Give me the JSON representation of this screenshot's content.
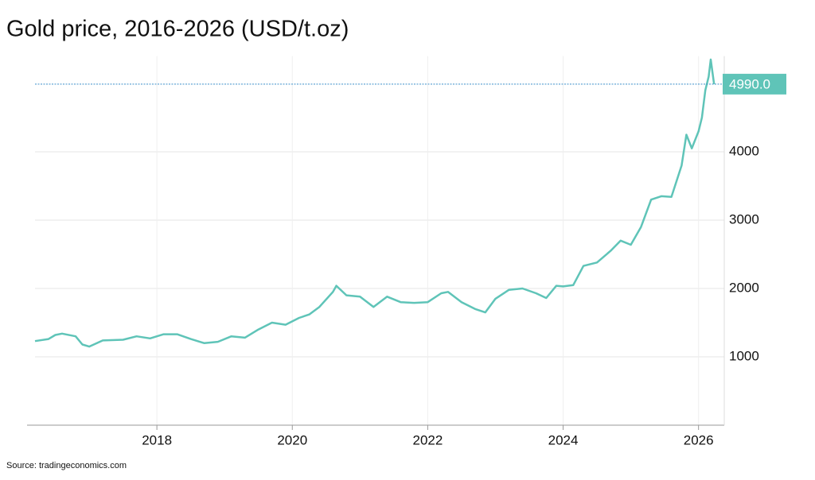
{
  "chart_data": {
    "type": "line",
    "title": "Gold price, 2016-2026  (USD/t.oz)",
    "source": "Source: tradingeconomics.com",
    "x": [
      2016.2,
      2016.4,
      2016.5,
      2016.6,
      2016.8,
      2016.9,
      2017.0,
      2017.2,
      2017.5,
      2017.7,
      2017.9,
      2018.1,
      2018.3,
      2018.5,
      2018.7,
      2018.9,
      2019.1,
      2019.3,
      2019.5,
      2019.7,
      2019.9,
      2020.1,
      2020.25,
      2020.4,
      2020.6,
      2020.65,
      2020.8,
      2021.0,
      2021.2,
      2021.4,
      2021.6,
      2021.8,
      2022.0,
      2022.2,
      2022.3,
      2022.5,
      2022.7,
      2022.85,
      2023.0,
      2023.2,
      2023.4,
      2023.6,
      2023.75,
      2023.9,
      2024.0,
      2024.15,
      2024.3,
      2024.5,
      2024.7,
      2024.85,
      2025.0,
      2025.15,
      2025.3,
      2025.45,
      2025.6,
      2025.75,
      2025.82,
      2025.9,
      2026.0,
      2026.05,
      2026.1,
      2026.15,
      2026.18,
      2026.23
    ],
    "series": [
      {
        "name": "Gold",
        "color": "#5fc4b8",
        "values": [
          1230,
          1260,
          1320,
          1340,
          1300,
          1180,
          1150,
          1240,
          1250,
          1300,
          1270,
          1330,
          1330,
          1260,
          1200,
          1220,
          1300,
          1280,
          1400,
          1500,
          1470,
          1570,
          1620,
          1730,
          1950,
          2040,
          1900,
          1880,
          1730,
          1880,
          1800,
          1790,
          1800,
          1930,
          1950,
          1800,
          1700,
          1650,
          1850,
          1980,
          2000,
          1930,
          1860,
          2040,
          2030,
          2050,
          2330,
          2380,
          2550,
          2700,
          2640,
          2900,
          3300,
          3350,
          3340,
          3800,
          4250,
          4050,
          4300,
          4500,
          4900,
          5100,
          5350,
          4990
        ]
      }
    ],
    "reference_line": {
      "value": 4990,
      "label": "4990.0"
    },
    "xlim": [
      2016.2,
      2026.38
    ],
    "xticks": [
      2018,
      2020,
      2022,
      2024,
      2026
    ],
    "ylim": [
      0,
      5400
    ],
    "yticks": [
      1000,
      2000,
      3000,
      4000
    ],
    "grid": true
  }
}
